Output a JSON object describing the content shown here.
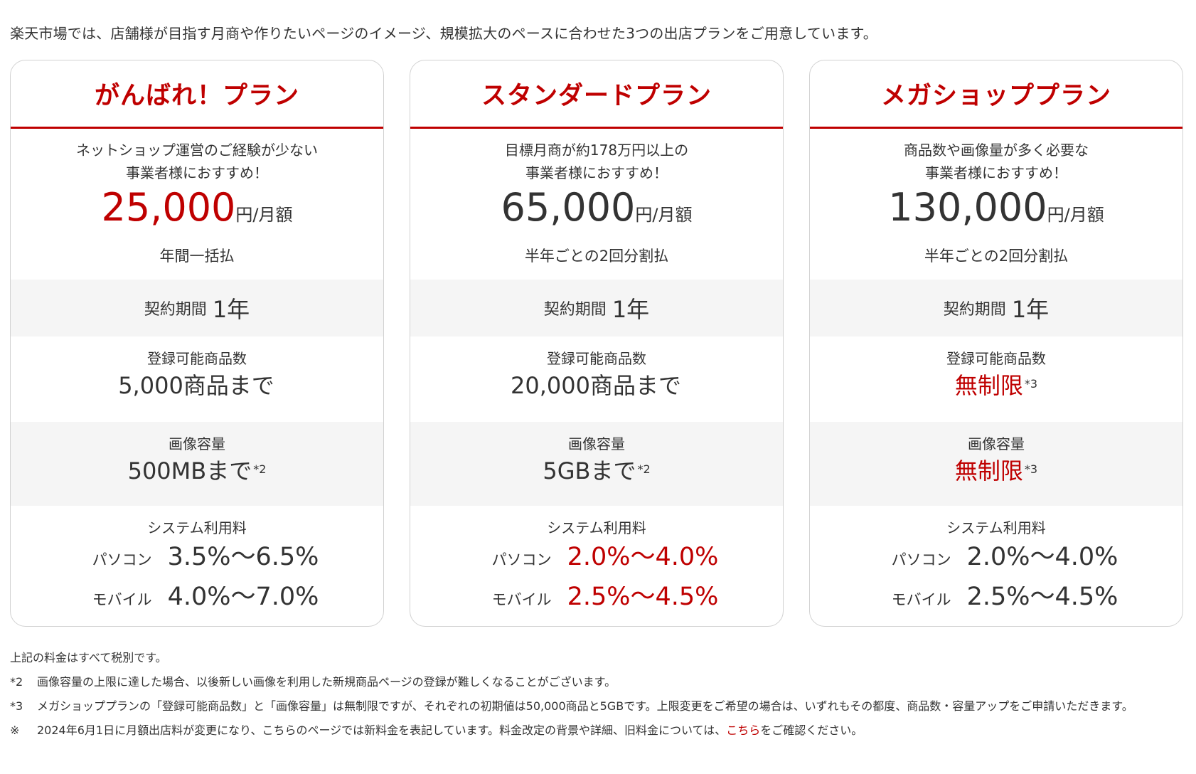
{
  "intro": "楽天市場では、店舗様が目指す月商や作りたいページのイメージ、規模拡大のペースに合わせた3つの出店プランをご用意しています。",
  "labels": {
    "contract": "契約期間",
    "items": "登録可能商品数",
    "images": "画像容量",
    "fee": "システム利用料",
    "pc": "パソコン",
    "mobile": "モバイル",
    "price_unit": "円/月額"
  },
  "colors": {
    "accent": "#bf0000",
    "text": "#333333",
    "band": "#f5f5f5",
    "border": "#d2d2d2"
  },
  "plans": [
    {
      "name": "がんばれ！プラン",
      "target_line1": "ネットショップ運営のご経験が少ない",
      "target_line2": "事業者様におすすめ！",
      "price": "25,000",
      "payment": "年間一括払",
      "contract": "1年",
      "items": "5,000商品まで",
      "items_note": "",
      "images": "500MBまで",
      "images_note": "*2",
      "fee_pc": "3.5%～6.5%",
      "fee_mobile": "4.0%～7.0%"
    },
    {
      "name": "スタンダードプラン",
      "target_line1": "目標月商が約178万円以上の",
      "target_line2": "事業者様におすすめ！",
      "price": "65,000",
      "payment": "半年ごとの2回分割払",
      "contract": "1年",
      "items": "20,000商品まで",
      "items_note": "",
      "images": "5GBまで",
      "images_note": "*2",
      "fee_pc": "2.0%～4.0%",
      "fee_mobile": "2.5%～4.5%"
    },
    {
      "name": "メガショッププラン",
      "target_line1": "商品数や画像量が多く必要な",
      "target_line2": "事業者様におすすめ！",
      "price": "130,000",
      "payment": "半年ごとの2回分割払",
      "contract": "1年",
      "items": "無制限",
      "items_note": "*3",
      "images": "無制限",
      "images_note": "*3",
      "fee_pc": "2.0%～4.0%",
      "fee_mobile": "2.5%～4.5%"
    }
  ],
  "notes": {
    "tax": "上記の料金はすべて税別です。",
    "n2_mark": "*2",
    "n2": "画像容量の上限に達した場合、以後新しい画像を利用した新規商品ページの登録が難しくなることがございます。",
    "n3_mark": "*3",
    "n3": "メガショッププランの「登録可能商品数」と「画像容量」は無制限ですが、それぞれの初期値は50,000商品と5GBです。上限変更をご希望の場合は、いずれもその都度、商品数・容量アップをご申請いただきます。",
    "kome_mark": "※",
    "kome_before": "2024年6月1日に月額出店料が変更になり、こちらのページでは新料金を表記しています。料金改定の背景や詳細、旧料金については、",
    "kome_link": "こちら",
    "kome_after": "をご確認ください。"
  }
}
